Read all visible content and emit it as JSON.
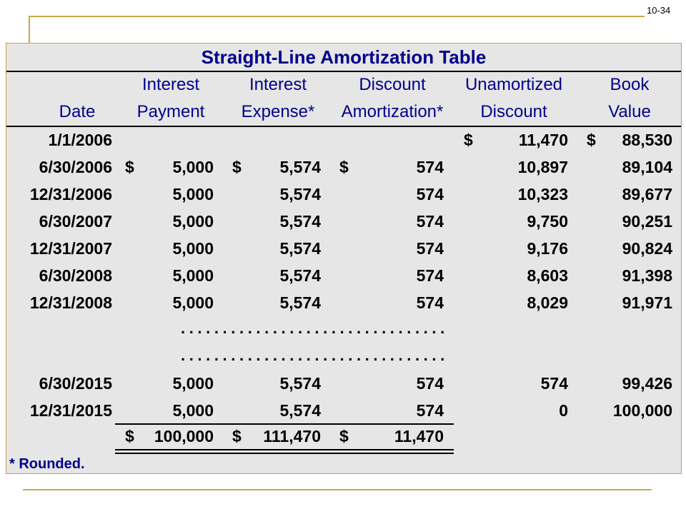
{
  "slide_number": "10-34",
  "title": "Straight-Line Amortization Table",
  "headers": {
    "date": [
      "",
      "Date"
    ],
    "interest_payment": [
      "Interest",
      "Payment"
    ],
    "interest_expense": [
      "Interest",
      "Expense*"
    ],
    "discount_amortization": [
      "Discount",
      "Amortization*"
    ],
    "unamortized_discount": [
      "Unamortized",
      "Discount"
    ],
    "book_value": [
      "Book",
      "Value"
    ]
  },
  "rows": [
    {
      "date": "1/1/2006",
      "payment": "",
      "expense": "",
      "amort": "",
      "unamort": "11,470",
      "book": "88,530",
      "dollar_pay": "",
      "dollar_exp": "",
      "dollar_amort": "",
      "dollar_unamort": "$",
      "dollar_book": "$"
    },
    {
      "date": "6/30/2006",
      "payment": "5,000",
      "expense": "5,574",
      "amort": "574",
      "unamort": "10,897",
      "book": "89,104",
      "dollar_pay": "$",
      "dollar_exp": "$",
      "dollar_amort": "$",
      "dollar_unamort": "",
      "dollar_book": ""
    },
    {
      "date": "12/31/2006",
      "payment": "5,000",
      "expense": "5,574",
      "amort": "574",
      "unamort": "10,323",
      "book": "89,677",
      "dollar_pay": "",
      "dollar_exp": "",
      "dollar_amort": "",
      "dollar_unamort": "",
      "dollar_book": ""
    },
    {
      "date": "6/30/2007",
      "payment": "5,000",
      "expense": "5,574",
      "amort": "574",
      "unamort": "9,750",
      "book": "90,251",
      "dollar_pay": "",
      "dollar_exp": "",
      "dollar_amort": "",
      "dollar_unamort": "",
      "dollar_book": ""
    },
    {
      "date": "12/31/2007",
      "payment": "5,000",
      "expense": "5,574",
      "amort": "574",
      "unamort": "9,176",
      "book": "90,824",
      "dollar_pay": "",
      "dollar_exp": "",
      "dollar_amort": "",
      "dollar_unamort": "",
      "dollar_book": ""
    },
    {
      "date": "6/30/2008",
      "payment": "5,000",
      "expense": "5,574",
      "amort": "574",
      "unamort": "8,603",
      "book": "91,398",
      "dollar_pay": "",
      "dollar_exp": "",
      "dollar_amort": "",
      "dollar_unamort": "",
      "dollar_book": ""
    },
    {
      "date": "12/31/2008",
      "payment": "5,000",
      "expense": "5,574",
      "amort": "574",
      "unamort": "8,029",
      "book": "91,971",
      "dollar_pay": "",
      "dollar_exp": "",
      "dollar_amort": "",
      "dollar_unamort": "",
      "dollar_book": ""
    },
    {
      "date": "6/30/2015",
      "payment": "5,000",
      "expense": "5,574",
      "amort": "574",
      "unamort": "574",
      "book": "99,426",
      "dollar_pay": "",
      "dollar_exp": "",
      "dollar_amort": "",
      "dollar_unamort": "",
      "dollar_book": ""
    },
    {
      "date": "12/31/2015",
      "payment": "5,000",
      "expense": "5,574",
      "amort": "574",
      "unamort": "0",
      "book": "100,000",
      "dollar_pay": "",
      "dollar_exp": "",
      "dollar_amort": "",
      "dollar_unamort": "",
      "dollar_book": ""
    }
  ],
  "ellipsis": "................................",
  "totals": {
    "dollar": "$",
    "payment": "100,000",
    "expense": "111,470",
    "amort": "11,470"
  },
  "footnote": "* Rounded."
}
